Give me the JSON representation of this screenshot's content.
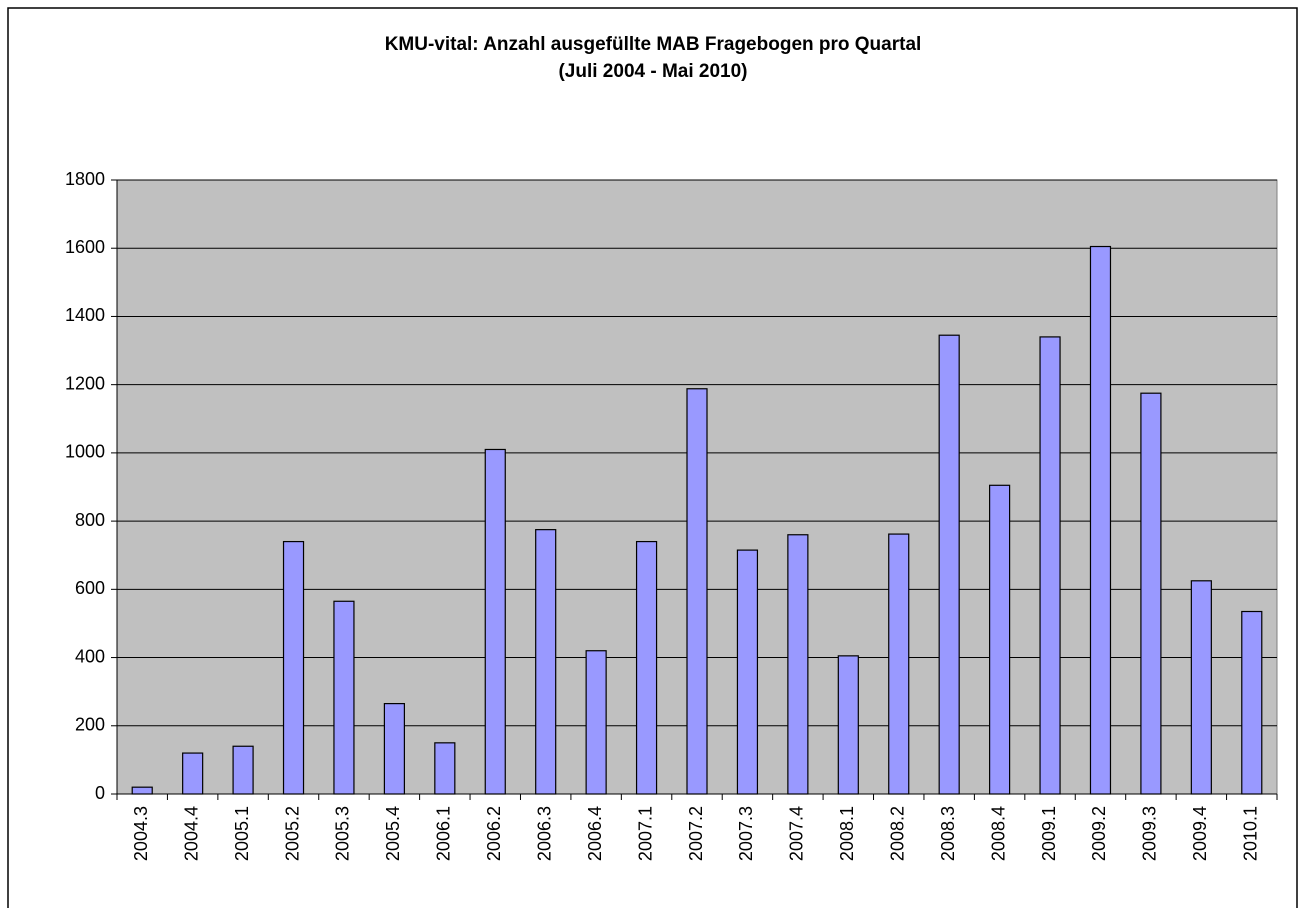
{
  "chart_data": {
    "type": "bar",
    "title": "KMU-vital: Anzahl ausgefüllte MAB Fragebogen pro Quartal",
    "subtitle": "(Juli 2004 - Mai 2010)",
    "categories": [
      "2004.3",
      "2004.4",
      "2005.1",
      "2005.2",
      "2005.3",
      "2005.4",
      "2006.1",
      "2006.2",
      "2006.3",
      "2006.4",
      "2007.1",
      "2007.2",
      "2007.3",
      "2007.4",
      "2008.1",
      "2008.2",
      "2008.3",
      "2008.4",
      "2009.1",
      "2009.2",
      "2009.3",
      "2009.4",
      "2010.1"
    ],
    "values": [
      20,
      120,
      140,
      740,
      565,
      265,
      150,
      1010,
      775,
      420,
      740,
      1188,
      715,
      760,
      405,
      762,
      1345,
      905,
      1340,
      1605,
      1175,
      625,
      535
    ],
    "color": "#9999ff",
    "ylim": [
      0,
      1800
    ],
    "yticks": [
      0,
      200,
      400,
      600,
      800,
      1000,
      1200,
      1400,
      1600,
      1800
    ],
    "grid": true
  }
}
